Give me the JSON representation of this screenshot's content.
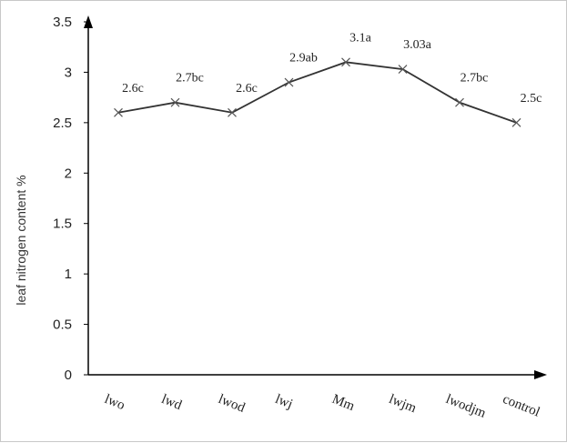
{
  "chart_data": {
    "type": "line",
    "categories": [
      "lwo",
      "lwd",
      "lwod",
      "lwj",
      "Mm",
      "lwjm",
      "lwodjm",
      "control"
    ],
    "series": [
      {
        "values": [
          2.6,
          2.7,
          2.6,
          2.9,
          3.1,
          3.03,
          2.7,
          2.5
        ],
        "data_labels": [
          "2.6c",
          "2.7bc",
          "2.6c",
          "2.9ab",
          "3.1a",
          "3.03a",
          "2.7bc",
          "2.5c"
        ]
      }
    ],
    "ylabel": "leaf nitrogen content %",
    "xlabel": "",
    "ylim": [
      0,
      3.5
    ],
    "yticks": [
      "0",
      "0.5",
      "1",
      "1.5",
      "2",
      "2.5",
      "3",
      "3.5"
    ],
    "grid": false,
    "marker": "x",
    "line_color": "#333333"
  }
}
